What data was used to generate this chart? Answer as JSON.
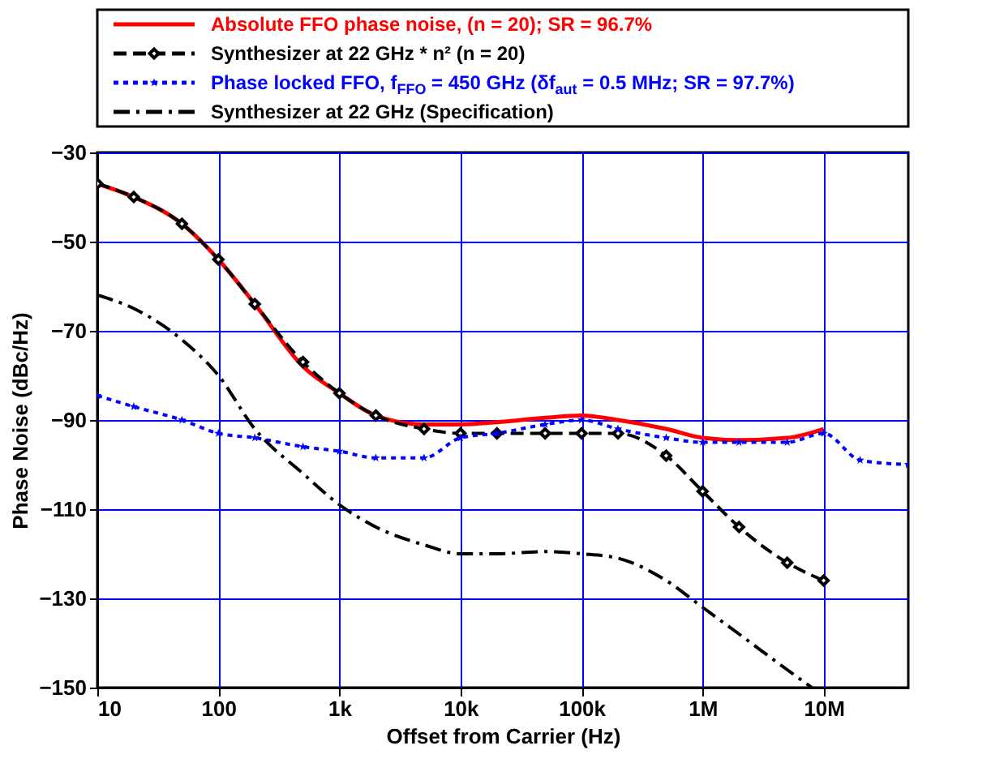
{
  "chart_data": {
    "type": "line",
    "xlabel": "Offset from Carrier (Hz)",
    "ylabel": "Phase Noise (dBc/Hz)",
    "log": "x",
    "grid": true,
    "legend": "top",
    "xlim": [
      10,
      50000000
    ],
    "ylim": [
      -150,
      -30
    ],
    "xticks": [
      {
        "value": 10,
        "label": "10"
      },
      {
        "value": 100,
        "label": "100"
      },
      {
        "value": 1000,
        "label": "1k"
      },
      {
        "value": 10000,
        "label": "10k"
      },
      {
        "value": 100000,
        "label": "100k"
      },
      {
        "value": 1000000,
        "label": "1M"
      },
      {
        "value": 10000000,
        "label": "10M"
      }
    ],
    "yticks": [
      -30,
      -50,
      -70,
      -90,
      -110,
      -130,
      -150
    ],
    "series": [
      {
        "name": "Absolute FFO phase noise, (n = 20); SR = 96.7%",
        "color": "#ff0000",
        "line_style": "solid",
        "marker": "none",
        "x": [
          10,
          20,
          50,
          100,
          200,
          500,
          1000,
          2000,
          5000,
          10000,
          20000,
          50000,
          100000,
          200000,
          500000,
          1000000,
          2000000,
          5000000,
          10000000
        ],
        "values": [
          -37,
          -40,
          -46,
          -54,
          -64,
          -78,
          -84,
          -89,
          -91,
          -91,
          -90.5,
          -89.5,
          -89,
          -90,
          -92,
          -94,
          -94.5,
          -94,
          -92
        ]
      },
      {
        "name": "Synthesizer at 22 GHz * n² (n = 20)",
        "color": "#000000",
        "line_style": "dashed",
        "marker": "diamond",
        "x": [
          10,
          20,
          50,
          100,
          200,
          500,
          1000,
          2000,
          5000,
          10000,
          20000,
          50000,
          100000,
          200000,
          500000,
          1000000,
          2000000,
          5000000,
          10000000
        ],
        "values": [
          -37,
          -40,
          -46,
          -54,
          -64,
          -77,
          -84,
          -89,
          -92,
          -93,
          -93,
          -93,
          -93,
          -93,
          -98,
          -106,
          -114,
          -122,
          -126
        ]
      },
      {
        "name": "Phase locked FFO, f$_{FFO}$ = 450 GHz (δf$_{aut}$ = 0.5 MHz; SR = 97.7%)",
        "color": "#0000ff",
        "line_style": "dotted",
        "marker": "star",
        "x": [
          10,
          20,
          50,
          100,
          200,
          500,
          1000,
          2000,
          5000,
          10000,
          20000,
          50000,
          100000,
          200000,
          500000,
          1000000,
          2000000,
          5000000,
          10000000,
          20000000,
          50000000
        ],
        "values": [
          -84.5,
          -87,
          -90,
          -93,
          -94,
          -96,
          -97,
          -98.5,
          -98.5,
          -94,
          -93,
          -91,
          -90,
          -92,
          -94,
          -95,
          -95,
          -95,
          -93,
          -99,
          -100
        ]
      },
      {
        "name": "Synthesizer at 22 GHz (Specification)",
        "color": "#000000",
        "line_style": "dashdot",
        "marker": "none",
        "x": [
          10,
          20,
          50,
          100,
          200,
          500,
          1000,
          2000,
          5000,
          10000,
          20000,
          50000,
          100000,
          200000,
          500000,
          1000000,
          2000000,
          5000000,
          8000000
        ],
        "values": [
          -62,
          -65,
          -72,
          -80,
          -92,
          -102,
          -109,
          -114,
          -118,
          -120,
          -120,
          -119.5,
          -120,
          -121,
          -126,
          -132,
          -138,
          -146,
          -150
        ]
      }
    ]
  }
}
